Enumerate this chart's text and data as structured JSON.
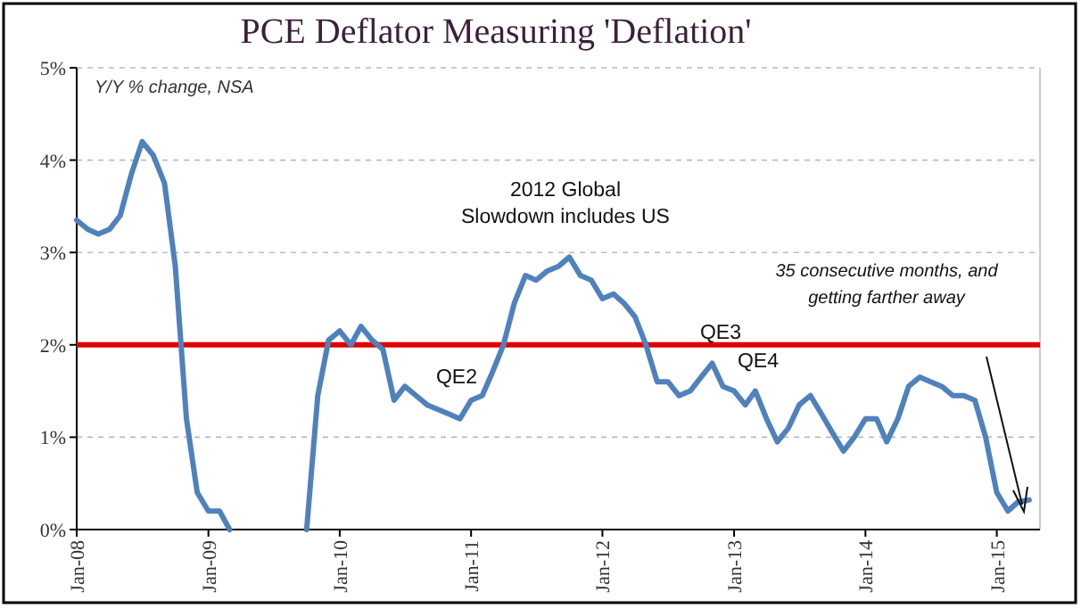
{
  "chart_data": {
    "type": "line",
    "title": "PCE Deflator Measuring 'Deflation'",
    "subtitle": "Y/Y % change, NSA",
    "x": [
      "2008-01",
      "2008-02",
      "2008-03",
      "2008-04",
      "2008-05",
      "2008-06",
      "2008-07",
      "2008-08",
      "2008-09",
      "2008-10",
      "2008-11",
      "2008-12",
      "2009-01",
      "2009-02",
      "2009-03",
      "2009-04",
      "2009-05",
      "2009-06",
      "2009-07",
      "2009-08",
      "2009-09",
      "2009-10",
      "2009-11",
      "2009-12",
      "2010-01",
      "2010-02",
      "2010-03",
      "2010-04",
      "2010-05",
      "2010-06",
      "2010-07",
      "2010-08",
      "2010-09",
      "2010-10",
      "2010-11",
      "2010-12",
      "2011-01",
      "2011-02",
      "2011-03",
      "2011-04",
      "2011-05",
      "2011-06",
      "2011-07",
      "2011-08",
      "2011-09",
      "2011-10",
      "2011-11",
      "2011-12",
      "2012-01",
      "2012-02",
      "2012-03",
      "2012-04",
      "2012-05",
      "2012-06",
      "2012-07",
      "2012-08",
      "2012-09",
      "2012-10",
      "2012-11",
      "2012-12",
      "2013-01",
      "2013-02",
      "2013-03",
      "2013-04",
      "2013-05",
      "2013-06",
      "2013-07",
      "2013-08",
      "2013-09",
      "2013-10",
      "2013-11",
      "2013-12",
      "2014-01",
      "2014-02",
      "2014-03",
      "2014-04",
      "2014-05",
      "2014-06",
      "2014-07",
      "2014-08",
      "2014-09",
      "2014-10",
      "2014-11",
      "2014-12",
      "2015-01",
      "2015-02",
      "2015-03",
      "2015-04"
    ],
    "series": [
      {
        "color": "#4f81bd",
        "values": [
          3.35,
          3.25,
          3.2,
          3.25,
          3.4,
          3.85,
          4.2,
          4.05,
          3.75,
          2.85,
          1.2,
          0.4,
          0.2,
          0.2,
          0,
          null,
          null,
          null,
          null,
          null,
          null,
          0,
          1.45,
          2.05,
          2.15,
          2.0,
          2.2,
          2.05,
          1.95,
          1.4,
          1.55,
          1.45,
          1.35,
          1.3,
          1.25,
          1.2,
          1.4,
          1.45,
          1.7,
          2.0,
          2.45,
          2.75,
          2.7,
          2.8,
          2.85,
          2.95,
          2.75,
          2.7,
          2.5,
          2.55,
          2.45,
          2.3,
          2.0,
          1.6,
          1.6,
          1.45,
          1.5,
          1.65,
          1.8,
          1.55,
          1.5,
          1.35,
          1.5,
          1.2,
          0.95,
          1.1,
          1.35,
          1.45,
          1.25,
          1.05,
          0.85,
          1.0,
          1.2,
          1.2,
          0.95,
          1.2,
          1.55,
          1.65,
          1.6,
          1.55,
          1.45,
          1.45,
          1.4,
          1.0,
          0.4,
          0.2,
          0.3,
          0.32
        ]
      }
    ],
    "xlim": [
      "2008-01",
      "2015-05"
    ],
    "xticks": [
      {
        "value": "2008-01",
        "label": "Jan-08"
      },
      {
        "value": "2009-01",
        "label": "Jan-09"
      },
      {
        "value": "2010-01",
        "label": "Jan-10"
      },
      {
        "value": "2011-01",
        "label": "Jan-11"
      },
      {
        "value": "2012-01",
        "label": "Jan-12"
      },
      {
        "value": "2013-01",
        "label": "Jan-13"
      },
      {
        "value": "2014-01",
        "label": "Jan-14"
      },
      {
        "value": "2015-01",
        "label": "Jan-15"
      }
    ],
    "ylim": [
      0,
      5
    ],
    "yticks": [
      {
        "value": 0,
        "label": "0%"
      },
      {
        "value": 1,
        "label": "1%"
      },
      {
        "value": 2,
        "label": "2%"
      },
      {
        "value": 3,
        "label": "3%"
      },
      {
        "value": 4,
        "label": "4%"
      },
      {
        "value": 5,
        "label": "5%"
      }
    ],
    "grid": "y",
    "marker": "none",
    "line_style": "solid",
    "ref_lines": [
      {
        "axis": "y",
        "value": 2,
        "color": "#e00000"
      }
    ],
    "annotations": [
      "QE2",
      "QE3",
      "QE4",
      "2012 Global\nSlowdown includes US",
      "35 consecutive months, and\ngetting farther away"
    ]
  }
}
